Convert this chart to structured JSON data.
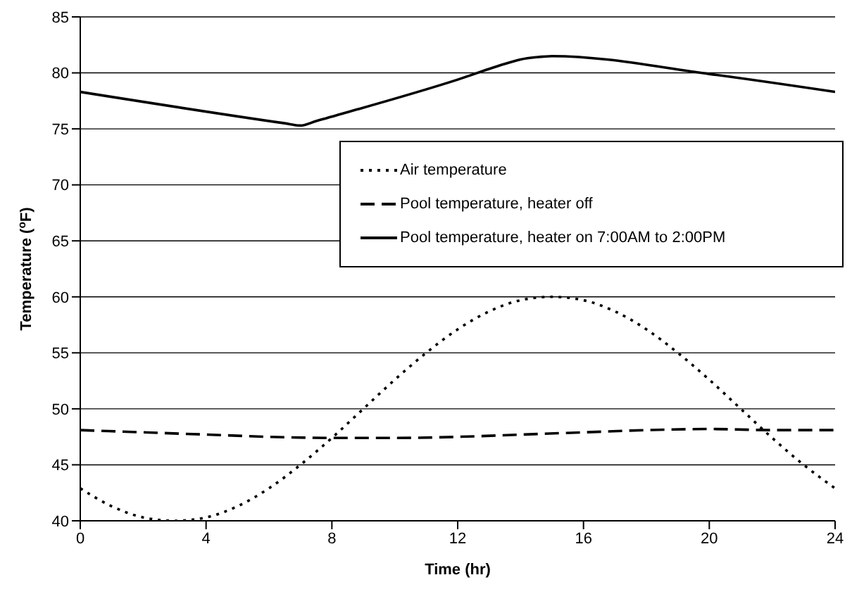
{
  "chart_data": {
    "type": "line",
    "xlabel": "Time (hr)",
    "ylabel": "Temperature ($^{o}$F)",
    "xlim": [
      0,
      24
    ],
    "xticks": [
      0,
      4,
      8,
      12,
      16,
      20,
      24
    ],
    "ylim": [
      40,
      85
    ],
    "yticks": [
      40,
      45,
      50,
      55,
      60,
      65,
      70,
      75,
      80,
      85
    ],
    "grid": "y",
    "legend": "top right",
    "marker": "none",
    "series": [
      {
        "name": "Air temperature",
        "color": "#000000",
        "line_style": "dotted",
        "x": [
          0,
          1,
          2,
          3,
          4,
          5,
          6,
          7,
          8,
          9,
          10,
          11,
          12,
          13,
          14,
          15,
          16,
          17,
          18,
          19,
          20,
          21,
          22,
          23,
          24
        ],
        "values": [
          42.9,
          41.3,
          40.3,
          40,
          40.3,
          41.3,
          42.9,
          45,
          47.4,
          50,
          52.6,
          55,
          57.1,
          58.7,
          59.7,
          60,
          59.7,
          58.7,
          57.1,
          55,
          52.6,
          50,
          47.4,
          45,
          42.9
        ]
      },
      {
        "name": "Pool temperature, heater off",
        "color": "#000000",
        "line_style": "dashed",
        "x": [
          0,
          2,
          4,
          6,
          8,
          10,
          12,
          14,
          16,
          18,
          20,
          22,
          24
        ],
        "values": [
          48.1,
          47.9,
          47.7,
          47.5,
          47.4,
          47.4,
          47.5,
          47.7,
          47.9,
          48.1,
          48.2,
          48.1,
          48.1
        ]
      },
      {
        "name": "Pool temperature, heater on 7:00AM to 2:00PM",
        "color": "#000000",
        "line_style": "solid",
        "x": [
          0,
          6.5,
          7,
          7.5,
          12,
          13.5,
          14,
          14.5,
          15,
          20,
          24
        ],
        "values": [
          78.3,
          75.5,
          75.3,
          75.7,
          79.4,
          80.8,
          81.2,
          81.4,
          81.5,
          79.9,
          78.3
        ]
      }
    ]
  }
}
